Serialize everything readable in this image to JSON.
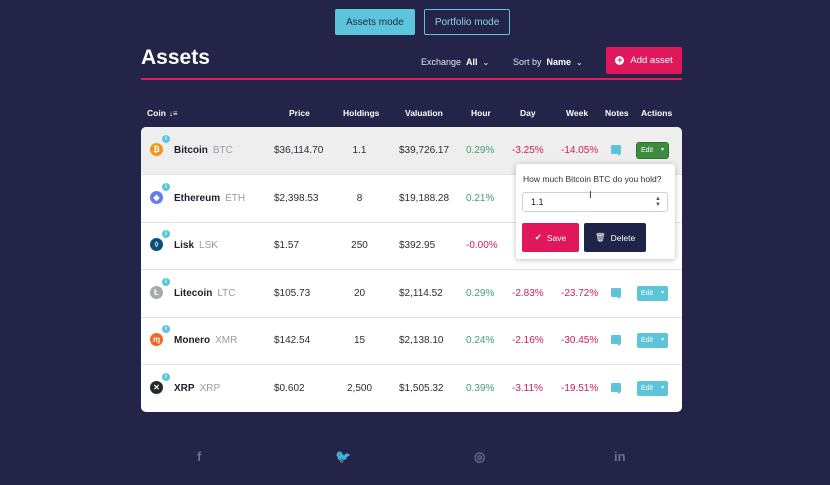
{
  "modes": {
    "assets_label": "Assets mode",
    "portfolio_label": "Portfolio mode"
  },
  "header": {
    "title": "Assets",
    "exchange_label": "Exchange",
    "exchange_value": "All",
    "sort_label": "Sort by",
    "sort_value": "Name",
    "add_label": "Add asset"
  },
  "columns": {
    "coin": "Coin",
    "price": "Price",
    "holdings": "Holdings",
    "valuation": "Valuation",
    "hour": "Hour",
    "day": "Day",
    "week": "Week",
    "notes": "Notes",
    "actions": "Actions"
  },
  "rows": [
    {
      "name": "Bitcoin",
      "symbol": "BTC",
      "price": "$36,114.70",
      "holdings": "1.1",
      "valuation": "$39,726.17",
      "hour": "0.29%",
      "day": "-3.25%",
      "week": "-14.05%",
      "edit": "Edit",
      "icon": "bitcoin-icon",
      "icon_color": "#f7931a",
      "glyph": "₿"
    },
    {
      "name": "Ethereum",
      "symbol": "ETH",
      "price": "$2,398.53",
      "holdings": "8",
      "valuation": "$19,188.28",
      "hour": "0.21%",
      "day": "",
      "week": "",
      "edit": "Edit",
      "icon": "ethereum-icon",
      "icon_color": "#627eea",
      "glyph": "◆"
    },
    {
      "name": "Lisk",
      "symbol": "LSK",
      "price": "$1.57",
      "holdings": "250",
      "valuation": "$392.95",
      "hour": "-0.00%",
      "day": "",
      "week": "",
      "edit": "Edit",
      "icon": "lisk-icon",
      "icon_color": "#0a4e7e",
      "glyph": "◊"
    },
    {
      "name": "Litecoin",
      "symbol": "LTC",
      "price": "$105.73",
      "holdings": "20",
      "valuation": "$2,114.52",
      "hour": "0.29%",
      "day": "-2.83%",
      "week": "-23.72%",
      "edit": "Edit",
      "icon": "litecoin-icon",
      "icon_color": "#a6a9aa",
      "glyph": "Ł"
    },
    {
      "name": "Monero",
      "symbol": "XMR",
      "price": "$142.54",
      "holdings": "15",
      "valuation": "$2,138.10",
      "hour": "0.24%",
      "day": "-2.16%",
      "week": "-30.45%",
      "edit": "Edit",
      "icon": "monero-icon",
      "icon_color": "#f26822",
      "glyph": "ɱ"
    },
    {
      "name": "XRP",
      "symbol": "XRP",
      "price": "$0.602",
      "holdings": "2,500",
      "valuation": "$1,505.32",
      "hour": "0.39%",
      "day": "-3.11%",
      "week": "-19.51%",
      "edit": "Edit",
      "icon": "xrp-icon",
      "icon_color": "#23292f",
      "glyph": "✕"
    }
  ],
  "popover": {
    "question": "How much Bitcoin BTC do you hold?",
    "value": "1.1",
    "save_label": "Save",
    "delete_label": "Delete"
  },
  "social": [
    "facebook-icon",
    "twitter-icon",
    "instagram-icon",
    "linkedin-icon"
  ],
  "colors": {
    "accent": "#e0175a",
    "primary": "#5cc5dc",
    "background": "#232448",
    "positive": "#3ca36f",
    "negative": "#d21d55"
  }
}
